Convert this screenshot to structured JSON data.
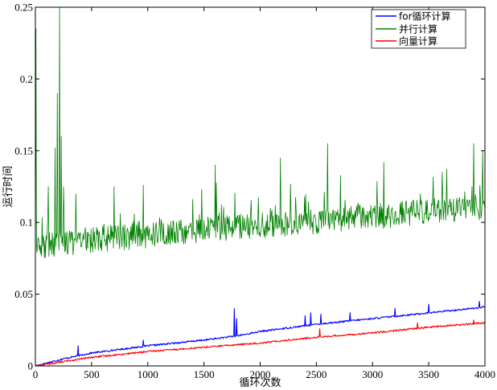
{
  "chart_data": {
    "type": "line",
    "title": "",
    "xlabel": "循环次数",
    "ylabel": "运行时间",
    "xlim": [
      0,
      4000
    ],
    "ylim": [
      0,
      0.25
    ],
    "x_ticks": [
      0,
      500,
      1000,
      1500,
      2000,
      2500,
      3000,
      3500,
      4000
    ],
    "x_tick_labels": [
      "0",
      "500",
      "1000",
      "1500",
      "2000",
      "2500",
      "3000",
      "3500",
      "4000"
    ],
    "y_ticks": [
      0,
      0.05,
      0.1,
      0.15,
      0.2,
      0.25
    ],
    "y_tick_labels": [
      "0",
      "0.05",
      "0.1",
      "0.15",
      "0.2",
      "0.25"
    ],
    "grid": false,
    "legend_position": "top-right",
    "series": [
      {
        "name": "for循环计算",
        "color": "#0000ff",
        "x": [
          0,
          250,
          500,
          1000,
          1500,
          1800,
          2000,
          2500,
          3000,
          3500,
          4000
        ],
        "values": [
          0,
          0.005,
          0.009,
          0.014,
          0.018,
          0.021,
          0.024,
          0.029,
          0.033,
          0.037,
          0.041
        ],
        "spikes": [
          [
            380,
            0.014
          ],
          [
            960,
            0.018
          ],
          [
            1770,
            0.04
          ],
          [
            1790,
            0.033
          ],
          [
            2400,
            0.035
          ],
          [
            2450,
            0.037
          ],
          [
            2540,
            0.036
          ],
          [
            2800,
            0.037
          ],
          [
            3200,
            0.04
          ],
          [
            3500,
            0.043
          ],
          [
            3950,
            0.045
          ]
        ]
      },
      {
        "name": "并行计算",
        "color": "#008000",
        "x": [
          0,
          500,
          1000,
          1500,
          2000,
          2500,
          3000,
          3500,
          4000
        ],
        "values": [
          0.083,
          0.088,
          0.091,
          0.095,
          0.098,
          0.101,
          0.104,
          0.108,
          0.111
        ],
        "spikes": [
          [
            5,
            0.235
          ],
          [
            115,
            0.125
          ],
          [
            175,
            0.152
          ],
          [
            195,
            0.19
          ],
          [
            215,
            0.25
          ],
          [
            230,
            0.16
          ],
          [
            250,
            0.125
          ],
          [
            360,
            0.12
          ],
          [
            700,
            0.125
          ],
          [
            960,
            0.126
          ],
          [
            1600,
            0.14
          ],
          [
            2180,
            0.145
          ],
          [
            2600,
            0.155
          ],
          [
            3100,
            0.142
          ],
          [
            3620,
            0.135
          ],
          [
            3900,
            0.155
          ],
          [
            3980,
            0.15
          ]
        ]
      },
      {
        "name": "向量计算",
        "color": "#ff0000",
        "x": [
          0,
          500,
          1000,
          1500,
          2000,
          2500,
          3000,
          3500,
          4000
        ],
        "values": [
          0,
          0.006,
          0.01,
          0.013,
          0.016,
          0.02,
          0.023,
          0.027,
          0.03
        ],
        "spikes": [
          [
            2530,
            0.026
          ],
          [
            3400,
            0.03
          ],
          [
            3900,
            0.032
          ]
        ]
      }
    ]
  }
}
